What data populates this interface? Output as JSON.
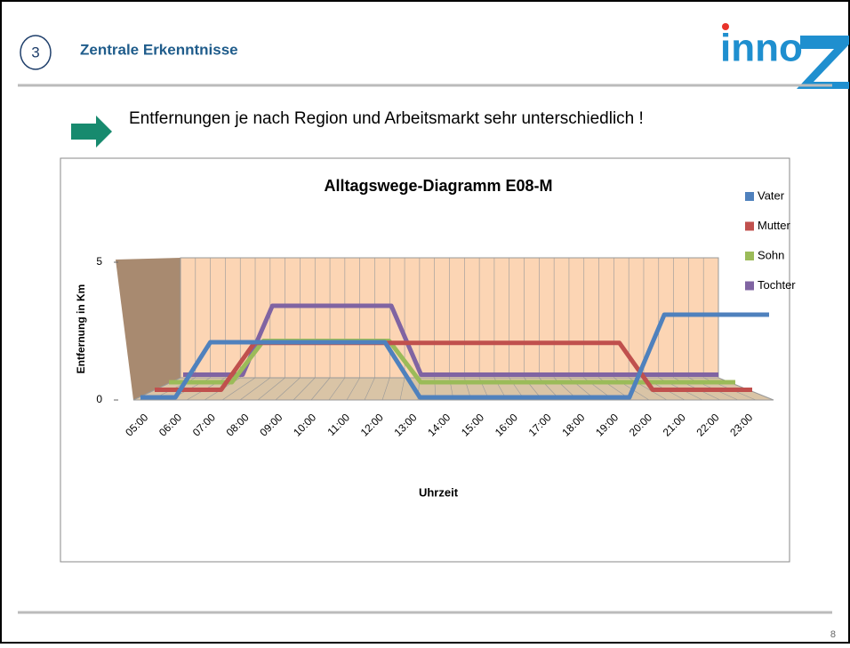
{
  "slide": {
    "number_badge": "3",
    "title": "Zentrale Erkenntnisse",
    "logo": "inno",
    "bullet": "Entfernungen je nach Region und Arbeitsmarkt sehr unterschiedlich !",
    "page_number": "8"
  },
  "chart_data": {
    "type": "line3d",
    "title": "Alltagswege-Diagramm E08-M",
    "x_label": "Uhrzeit",
    "y_label": "Entfernung in Km",
    "categories": [
      "05:00",
      "06:00",
      "07:00",
      "08:00",
      "09:00",
      "10:00",
      "11:00",
      "12:00",
      "13:00",
      "14:00",
      "15:00",
      "16:00",
      "17:00",
      "18:00",
      "19:00",
      "20:00",
      "21:00",
      "22:00",
      "23:00"
    ],
    "ylim": [
      0,
      5
    ],
    "yticks": [
      0,
      5
    ],
    "series": [
      {
        "name": "Vater",
        "color": "#4f81bd",
        "values": [
          0,
          0,
          2,
          2,
          2,
          2,
          2,
          2,
          0,
          0,
          0,
          0,
          0,
          0,
          0,
          3,
          3,
          3,
          3
        ]
      },
      {
        "name": "Mutter",
        "color": "#c0504d",
        "values": [
          0,
          0,
          0,
          1.7,
          1.7,
          1.7,
          1.7,
          1.7,
          1.7,
          1.7,
          1.7,
          1.7,
          1.7,
          1.7,
          1.7,
          0,
          0,
          0,
          0
        ]
      },
      {
        "name": "Sohn",
        "color": "#9bbb59",
        "values": [
          0,
          0,
          0,
          1.5,
          1.5,
          1.5,
          1.5,
          1.5,
          0,
          0,
          0,
          0,
          0,
          0,
          0,
          0,
          0,
          0,
          0
        ]
      },
      {
        "name": "Tochter",
        "color": "#8064a2",
        "values": [
          0,
          0,
          0,
          2.5,
          2.5,
          2.5,
          2.5,
          2.5,
          0,
          0,
          0,
          0,
          0,
          0,
          0,
          0,
          0,
          0,
          0
        ]
      }
    ]
  }
}
